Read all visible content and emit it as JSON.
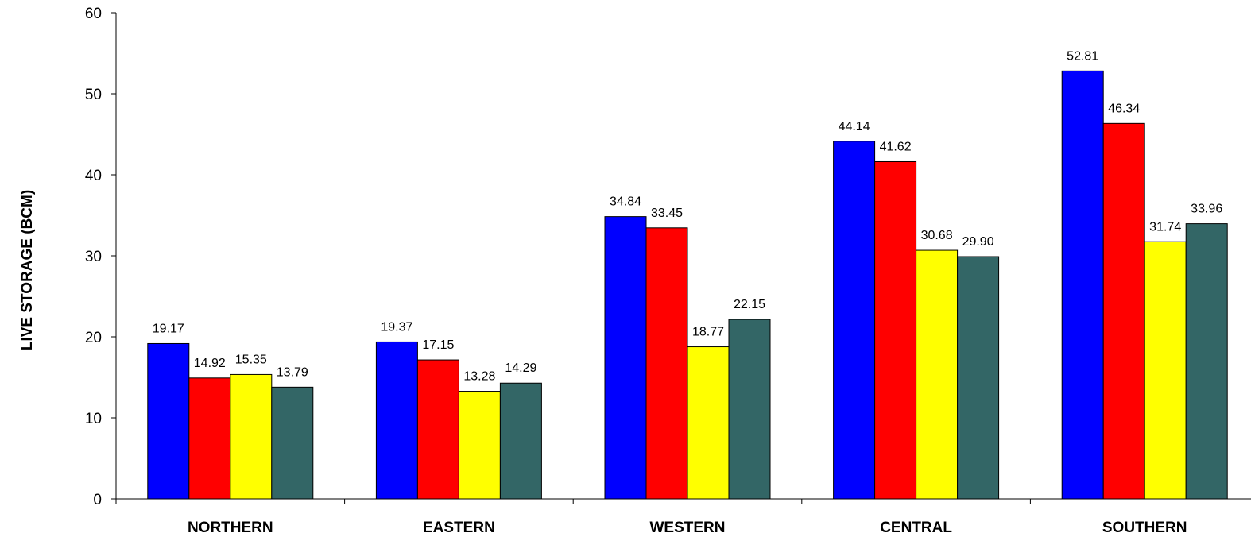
{
  "chart_data": {
    "type": "bar",
    "title": "",
    "xlabel": "",
    "ylabel": "LIVE STORAGE (BCM)",
    "ylim": [
      0,
      60
    ],
    "yticks": [
      0,
      10,
      20,
      30,
      40,
      50,
      60
    ],
    "grid": false,
    "legend": "none",
    "categories": [
      "NORTHERN",
      "EASTERN",
      "WESTERN",
      "CENTRAL",
      "SOUTHERN"
    ],
    "series": [
      {
        "color": "#0000ff",
        "values": [
          19.17,
          19.37,
          34.84,
          44.14,
          52.81
        ],
        "labels": [
          "19.17",
          "19.37",
          "34.84",
          "44.14",
          "52.81"
        ]
      },
      {
        "color": "#ff0000",
        "values": [
          14.92,
          17.15,
          33.45,
          41.62,
          46.34
        ],
        "labels": [
          "14.92",
          "17.15",
          "33.45",
          "41.62",
          "46.34"
        ]
      },
      {
        "color": "#ffff00",
        "values": [
          15.35,
          13.28,
          18.77,
          30.68,
          31.74
        ],
        "labels": [
          "15.35",
          "13.28",
          "18.77",
          "30.68",
          "31.74"
        ]
      },
      {
        "color": "#336666",
        "values": [
          13.79,
          14.29,
          22.15,
          29.9,
          33.96
        ],
        "labels": [
          "13.79",
          "14.29",
          "22.15",
          "29.90",
          "33.96"
        ]
      }
    ]
  }
}
